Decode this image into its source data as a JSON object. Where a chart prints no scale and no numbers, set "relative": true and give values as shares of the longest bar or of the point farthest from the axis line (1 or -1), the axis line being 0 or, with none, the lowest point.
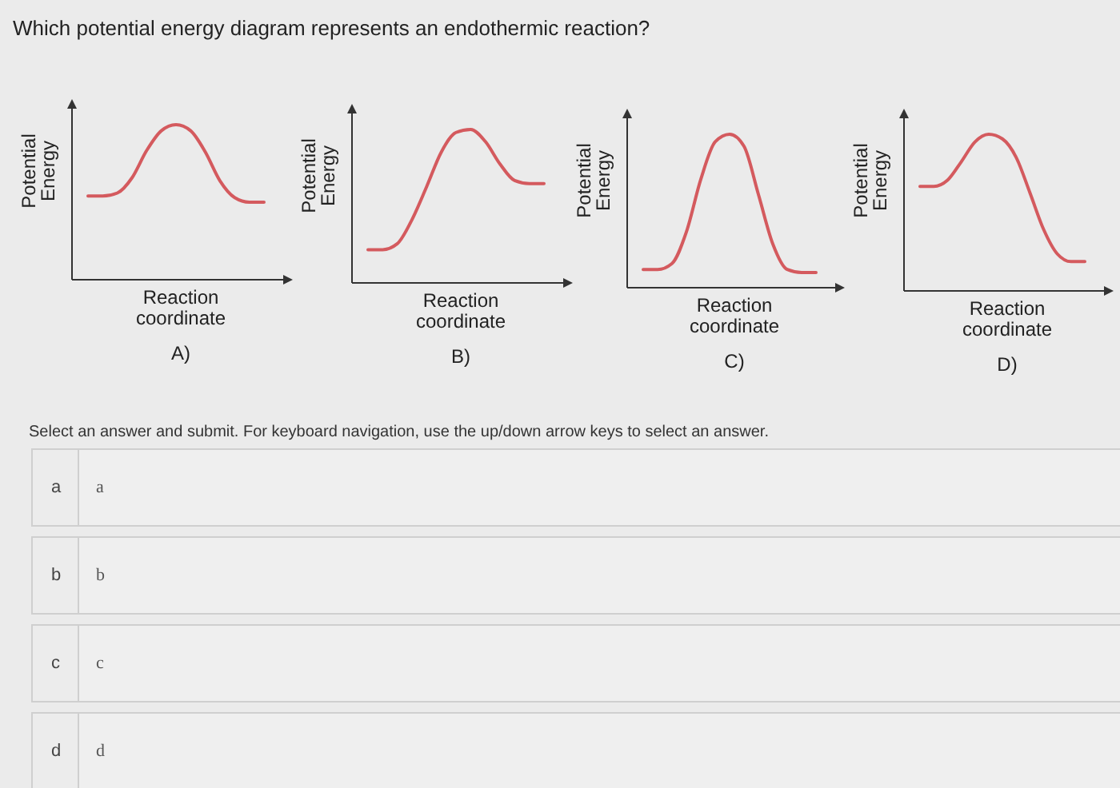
{
  "chart_data": [
    {
      "type": "other",
      "title": "Which potential energy diagram represents an endothermic reaction?"
    },
    {
      "type": "line",
      "relative": true,
      "xlabel": "Reaction coordinate",
      "ylabel": "Potential Energy",
      "annotations": [
        "A)"
      ],
      "categories": [
        null,
        null,
        null,
        null,
        null,
        null,
        null,
        null,
        null,
        null,
        null,
        null,
        null
      ],
      "series": [
        {
          "color": "#d45a5e",
          "values": [
            0.53,
            0.53,
            0.55,
            0.65,
            0.83,
            0.96,
            1.0,
            0.96,
            0.82,
            0.63,
            0.52,
            0.49,
            0.49
          ]
        }
      ]
    },
    {
      "type": "line",
      "relative": true,
      "xlabel": "Reaction coordinate",
      "ylabel": "Potential Energy",
      "annotations": [
        "B)"
      ],
      "categories": [
        null,
        null,
        null,
        null,
        null,
        null,
        null,
        null,
        null,
        null,
        null,
        null,
        null
      ],
      "series": [
        {
          "color": "#d45a5e",
          "values": [
            0.2,
            0.2,
            0.24,
            0.4,
            0.62,
            0.85,
            0.98,
            1.0,
            0.92,
            0.77,
            0.66,
            0.64,
            0.64
          ]
        }
      ]
    },
    {
      "type": "line",
      "relative": true,
      "xlabel": "Reaction coordinate",
      "ylabel": "Potential Energy",
      "annotations": [
        "C)"
      ],
      "categories": [
        null,
        null,
        null,
        null,
        null,
        null,
        null,
        null,
        null,
        null,
        null,
        null,
        null
      ],
      "series": [
        {
          "color": "#d45a5e",
          "values": [
            0.1,
            0.1,
            0.14,
            0.35,
            0.7,
            0.95,
            1.0,
            0.92,
            0.6,
            0.27,
            0.1,
            0.08,
            0.08
          ]
        }
      ]
    },
    {
      "type": "line",
      "relative": true,
      "xlabel": "Reaction coordinate",
      "ylabel": "Potential Energy",
      "annotations": [
        "D)"
      ],
      "categories": [
        null,
        null,
        null,
        null,
        null,
        null,
        null,
        null,
        null,
        null,
        null,
        null,
        null
      ],
      "series": [
        {
          "color": "#d45a5e",
          "values": [
            0.66,
            0.66,
            0.7,
            0.82,
            0.95,
            1.0,
            0.97,
            0.85,
            0.62,
            0.38,
            0.22,
            0.17,
            0.17
          ]
        }
      ]
    },
    {
      "type": "other",
      "annotations": [
        "Select an answer and submit. For keyboard navigation, use the up/down arrow keys to select an answer.",
        "a",
        "a",
        "b",
        "b",
        "c",
        "c",
        "d",
        "d"
      ]
    }
  ]
}
